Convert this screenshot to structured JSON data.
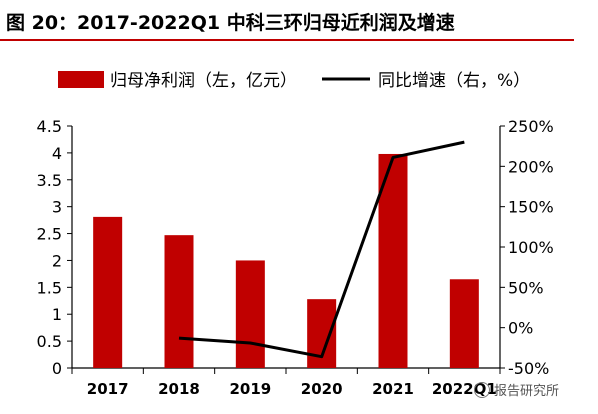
{
  "title": "图 20：2017-2022Q1 中科三环归母近利润及增速",
  "watermark": "报告研究所",
  "colors": {
    "bar": "#c00000",
    "line": "#000000",
    "accent": "#c00000"
  },
  "chart_data": {
    "type": "bar",
    "categories": [
      "2017",
      "2018",
      "2019",
      "2020",
      "2021",
      "2022Q1"
    ],
    "series": [
      {
        "name": "归母净利润（左，亿元）",
        "type": "bar",
        "axis": "left",
        "values": [
          2.81,
          2.47,
          2.0,
          1.28,
          3.98,
          1.65
        ]
      },
      {
        "name": "同比增速（右，%）",
        "type": "line",
        "axis": "right",
        "values": [
          null,
          -13,
          -19,
          -36,
          211,
          230
        ]
      }
    ],
    "left_axis": {
      "ylim": [
        0,
        4.5
      ],
      "ticks": [
        "0",
        "0.5",
        "1",
        "1.5",
        "2",
        "2.5",
        "3",
        "3.5",
        "4",
        "4.5"
      ]
    },
    "right_axis": {
      "ylim": [
        -50,
        250
      ],
      "ticks": [
        "-50%",
        "0%",
        "50%",
        "100%",
        "150%",
        "200%",
        "250%"
      ]
    },
    "legend_position": "top",
    "grid": false
  }
}
